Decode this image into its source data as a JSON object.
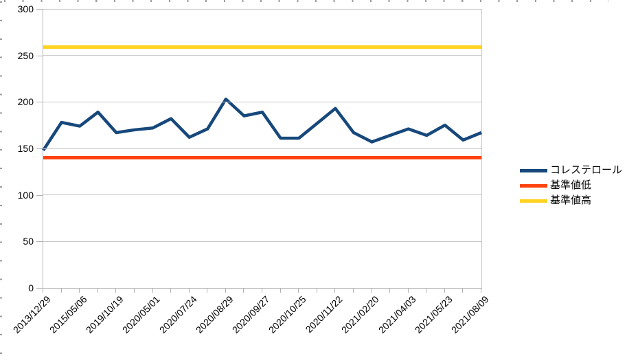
{
  "chart_data": {
    "type": "line",
    "title": "",
    "xlabel": "",
    "ylabel": "",
    "ylim": [
      0,
      300
    ],
    "y_ticks": [
      300,
      250,
      200,
      150,
      100,
      50,
      0
    ],
    "grid": "horizontal",
    "legend_position": "right",
    "x_labels": [
      "2013/12/29",
      "2015/05/06",
      "2019/10/19",
      "2020/05/01",
      "2020/07/24",
      "2020/08/29",
      "2020/09/27",
      "2020/10/25",
      "2020/11/22",
      "2021/02/20",
      "2021/04/03",
      "2021/05/23",
      "2021/08/09"
    ],
    "label_every_nth_point": 2,
    "series": [
      {
        "name": "コレステロール",
        "kind": "data-line",
        "color": "#17487B",
        "values": [
          148,
          178,
          174,
          189,
          167,
          170,
          172,
          182,
          162,
          171,
          203,
          185,
          189,
          161,
          161,
          177,
          193,
          167,
          157,
          164,
          171,
          164,
          175,
          159,
          167
        ]
      },
      {
        "name": "基準値低",
        "kind": "constant-line",
        "color": "#FF420E",
        "value": 140
      },
      {
        "name": "基準値高",
        "kind": "constant-line",
        "color": "#FFD320",
        "value": 259
      }
    ],
    "colors": {
      "gridline": "#C8C8C8",
      "axis": "#B3B3B3",
      "text": "#000000"
    }
  }
}
